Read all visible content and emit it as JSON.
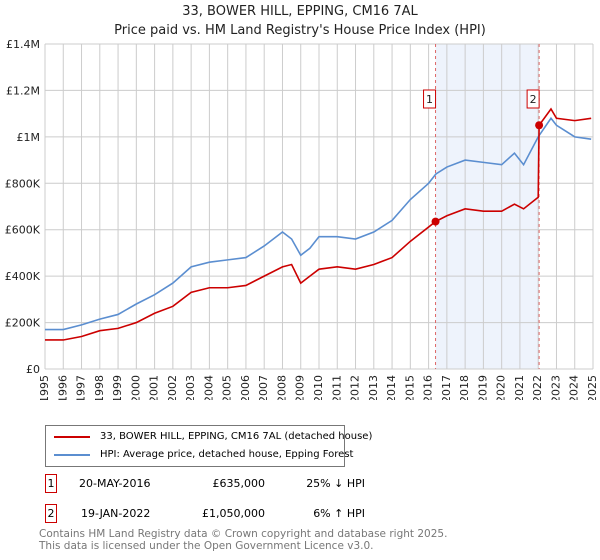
{
  "title": "33, BOWER HILL, EPPING, CM16 7AL",
  "subtitle": "Price paid vs. HM Land Registry's House Price Index (HPI)",
  "chart_data": {
    "type": "line",
    "ylim": [
      0,
      1400000
    ],
    "xlim": [
      1995,
      2025
    ],
    "yticks": [
      {
        "v": 0,
        "label": "£0"
      },
      {
        "v": 200000,
        "label": "£200K"
      },
      {
        "v": 400000,
        "label": "£400K"
      },
      {
        "v": 600000,
        "label": "£600K"
      },
      {
        "v": 800000,
        "label": "£800K"
      },
      {
        "v": 1000000,
        "label": "£1M"
      },
      {
        "v": 1200000,
        "label": "£1.2M"
      },
      {
        "v": 1400000,
        "label": "£1.4M"
      }
    ],
    "xticks": [
      "1995",
      "1996",
      "1997",
      "1998",
      "1999",
      "2000",
      "2001",
      "2002",
      "2003",
      "2004",
      "2005",
      "2006",
      "2007",
      "2008",
      "2009",
      "2010",
      "2011",
      "2012",
      "2013",
      "2014",
      "2015",
      "2016",
      "2017",
      "2018",
      "2019",
      "2020",
      "2021",
      "2022",
      "2023",
      "2024",
      "2025"
    ],
    "shaded_range": [
      2016.38,
      2022.05
    ],
    "series": [
      {
        "name": "33, BOWER HILL, EPPING, CM16 7AL (detached house)",
        "color": "#cc0000",
        "points": [
          [
            1995,
            125000
          ],
          [
            1996,
            125000
          ],
          [
            1997,
            140000
          ],
          [
            1998,
            165000
          ],
          [
            1999,
            175000
          ],
          [
            2000,
            200000
          ],
          [
            2001,
            240000
          ],
          [
            2002,
            270000
          ],
          [
            2003,
            330000
          ],
          [
            2004,
            350000
          ],
          [
            2005,
            350000
          ],
          [
            2006,
            360000
          ],
          [
            2007,
            400000
          ],
          [
            2008,
            440000
          ],
          [
            2008.5,
            450000
          ],
          [
            2009,
            370000
          ],
          [
            2009.5,
            400000
          ],
          [
            2010,
            430000
          ],
          [
            2011,
            440000
          ],
          [
            2012,
            430000
          ],
          [
            2013,
            450000
          ],
          [
            2014,
            480000
          ],
          [
            2015,
            550000
          ],
          [
            2016.38,
            635000
          ],
          [
            2017,
            660000
          ],
          [
            2018,
            690000
          ],
          [
            2019,
            680000
          ],
          [
            2020,
            680000
          ],
          [
            2020.7,
            710000
          ],
          [
            2021.2,
            690000
          ],
          [
            2022.0,
            740000
          ],
          [
            2022.05,
            1050000
          ],
          [
            2022.7,
            1120000
          ],
          [
            2023,
            1080000
          ],
          [
            2024,
            1070000
          ],
          [
            2024.9,
            1080000
          ]
        ]
      },
      {
        "name": "HPI: Average price, detached house, Epping Forest",
        "color": "#5b8ed0",
        "points": [
          [
            1995,
            170000
          ],
          [
            1996,
            170000
          ],
          [
            1997,
            190000
          ],
          [
            1998,
            215000
          ],
          [
            1999,
            235000
          ],
          [
            2000,
            280000
          ],
          [
            2001,
            320000
          ],
          [
            2002,
            370000
          ],
          [
            2003,
            440000
          ],
          [
            2004,
            460000
          ],
          [
            2005,
            470000
          ],
          [
            2006,
            480000
          ],
          [
            2007,
            530000
          ],
          [
            2008,
            590000
          ],
          [
            2008.5,
            560000
          ],
          [
            2009,
            490000
          ],
          [
            2009.5,
            520000
          ],
          [
            2010,
            570000
          ],
          [
            2011,
            570000
          ],
          [
            2012,
            560000
          ],
          [
            2013,
            590000
          ],
          [
            2014,
            640000
          ],
          [
            2015,
            730000
          ],
          [
            2016,
            800000
          ],
          [
            2016.4,
            840000
          ],
          [
            2017,
            870000
          ],
          [
            2018,
            900000
          ],
          [
            2019,
            890000
          ],
          [
            2020,
            880000
          ],
          [
            2020.7,
            930000
          ],
          [
            2021.2,
            880000
          ],
          [
            2022,
            1000000
          ],
          [
            2022.7,
            1080000
          ],
          [
            2023,
            1050000
          ],
          [
            2024,
            1000000
          ],
          [
            2024.9,
            990000
          ]
        ]
      }
    ],
    "annotations": [
      {
        "label": "1",
        "x": 2016.38,
        "y": 635000
      },
      {
        "label": "2",
        "x": 2022.05,
        "y": 1050000
      }
    ]
  },
  "legend": {
    "items": [
      "33, BOWER HILL, EPPING, CM16 7AL (detached house)",
      "HPI: Average price, detached house, Epping Forest"
    ]
  },
  "transactions": [
    {
      "num": "1",
      "date": "20-MAY-2016",
      "price": "£635,000",
      "hpi": "25% ↓ HPI"
    },
    {
      "num": "2",
      "date": "19-JAN-2022",
      "price": "£1,050,000",
      "hpi": "6% ↑ HPI"
    }
  ],
  "footer": [
    "Contains HM Land Registry data © Crown copyright and database right 2025.",
    "This data is licensed under the Open Government Licence v3.0."
  ]
}
